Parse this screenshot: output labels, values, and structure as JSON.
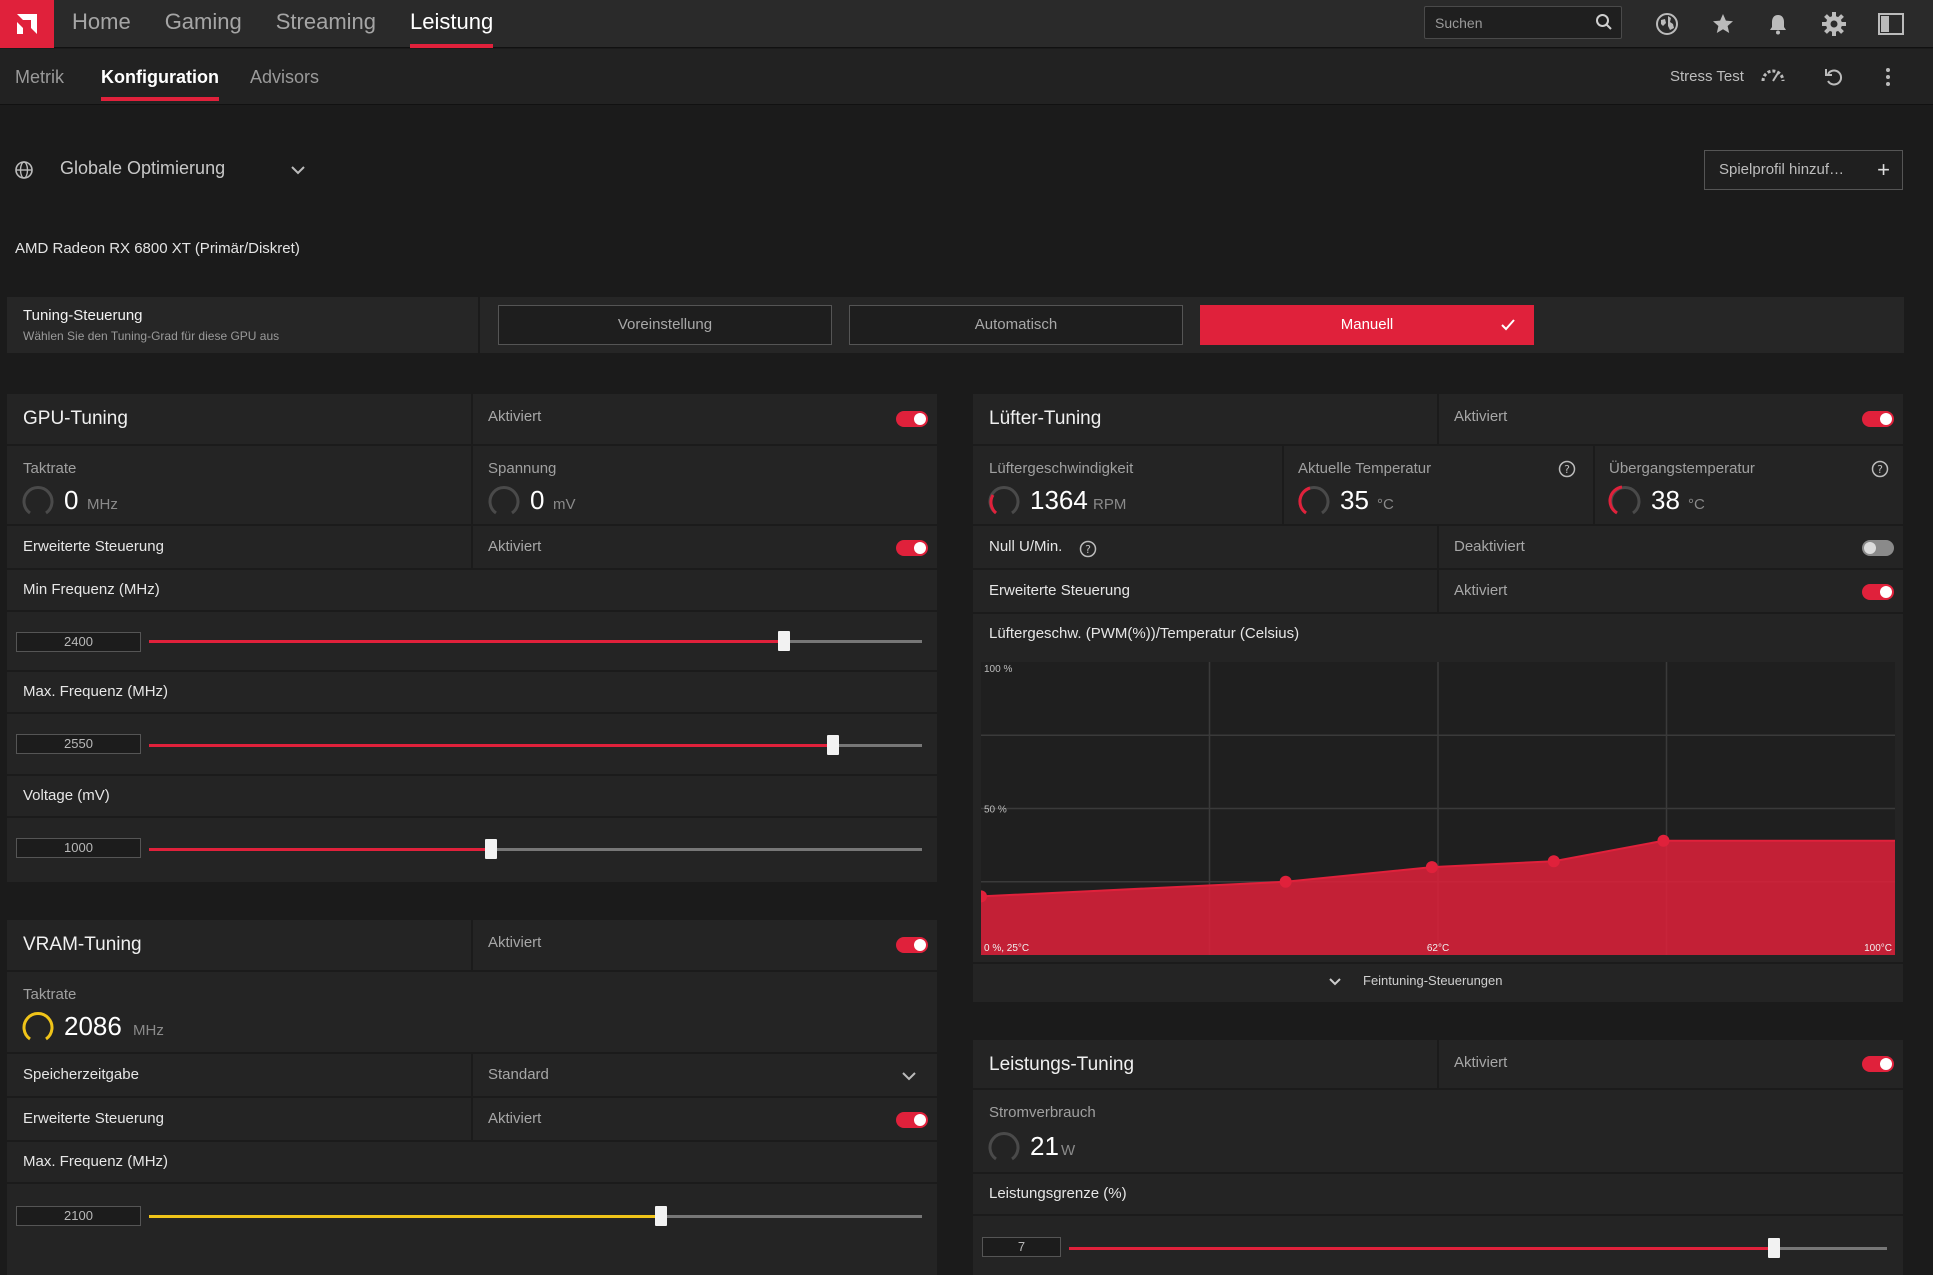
{
  "nav": {
    "items": [
      "Home",
      "Gaming",
      "Streaming",
      "Leistung"
    ],
    "active_index": 3,
    "search_placeholder": "Suchen"
  },
  "subnav": {
    "tabs": [
      "Metrik",
      "Konfiguration",
      "Advisors"
    ],
    "active_index": 1,
    "stress_test": "Stress Test"
  },
  "profile": {
    "label": "Globale Optimierung",
    "add_button": "Spielprofil hinzuf…"
  },
  "gpu_name": "AMD Radeon RX 6800 XT (Primär/Diskret)",
  "tuning_control": {
    "title": "Tuning-Steuerung",
    "subtitle": "Wählen Sie den Tuning-Grad für diese GPU aus",
    "options": [
      "Voreinstellung",
      "Automatisch",
      "Manuell"
    ],
    "selected_index": 2
  },
  "gpu_tuning": {
    "title": "GPU-Tuning",
    "status": "Aktiviert",
    "enabled": true,
    "clock_label": "Taktrate",
    "clock_value": "0",
    "clock_unit": "MHz",
    "voltage_label": "Spannung",
    "voltage_value": "0",
    "voltage_unit": "mV",
    "advanced_label": "Erweiterte Steuerung",
    "advanced_status": "Aktiviert",
    "min_freq_label": "Min Frequenz (MHz)",
    "min_freq_value": "2400",
    "min_freq_fraction": 0.822,
    "max_freq_label": "Max. Frequenz (MHz)",
    "max_freq_value": "2550",
    "max_freq_fraction": 0.885,
    "voltage_slider_label": "Voltage (mV)",
    "voltage_slider_value": "1000",
    "voltage_slider_fraction": 0.443
  },
  "vram_tuning": {
    "title": "VRAM-Tuning",
    "status": "Aktiviert",
    "enabled": true,
    "clock_label": "Taktrate",
    "clock_value": "2086",
    "clock_unit": "MHz",
    "timing_label": "Speicherzeitgabe",
    "timing_value": "Standard",
    "advanced_label": "Erweiterte Steuerung",
    "advanced_status": "Aktiviert",
    "max_freq_label": "Max. Frequenz (MHz)",
    "max_freq_value": "2100",
    "max_freq_fraction": 0.663
  },
  "fan_tuning": {
    "title": "Lüfter-Tuning",
    "status": "Aktiviert",
    "enabled": true,
    "fan_speed_label": "Lüftergeschwindigkeit",
    "fan_speed_value": "1364",
    "fan_speed_unit": "RPM",
    "current_temp_label": "Aktuelle Temperatur",
    "current_temp_value": "35",
    "current_temp_unit": "°C",
    "junction_temp_label": "Übergangstemperatur",
    "junction_temp_value": "38",
    "junction_temp_unit": "°C",
    "zero_rpm_label": "Null U/Min.",
    "zero_rpm_status": "Deaktiviert",
    "advanced_label": "Erweiterte Steuerung",
    "advanced_status": "Aktiviert",
    "curve_label": "Lüftergeschw. (PWM(%))/Temperatur (Celsius)",
    "fine_tuning": "Feintuning-Steuerungen"
  },
  "power_tuning": {
    "title": "Leistungs-Tuning",
    "status": "Aktiviert",
    "enabled": true,
    "power_label": "Stromverbrauch",
    "power_value": "21",
    "power_unit": "W",
    "limit_label": "Leistungsgrenze (%)",
    "limit_value": "7",
    "limit_fraction": 0.862
  },
  "chart_data": {
    "type": "area",
    "title": "Lüftergeschw. (PWM(%))/Temperatur (Celsius)",
    "xlabel": "",
    "ylabel": "",
    "xlim": [
      25,
      100
    ],
    "ylim": [
      0,
      100
    ],
    "x_tick_labels": [
      "0 %, 25°C",
      "62°C",
      "100°C"
    ],
    "y_tick_labels": [
      "100 %",
      "50 %"
    ],
    "grid": true,
    "series": [
      {
        "x": [
          25,
          50,
          62,
          72,
          81,
          100
        ],
        "y": [
          20,
          25,
          30,
          32,
          39,
          39
        ]
      }
    ],
    "color": "#e0213b"
  }
}
